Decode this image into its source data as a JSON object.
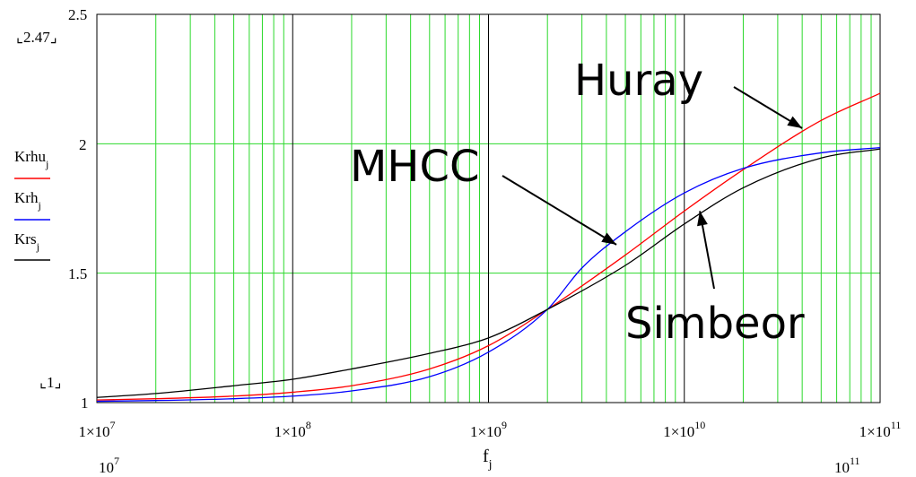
{
  "chart_data": {
    "type": "line",
    "x_scale": "log",
    "xlim": [
      10000000,
      100000000000
    ],
    "ylim": [
      1,
      2.5
    ],
    "grid": true,
    "x_tick_labels": [
      {
        "base": "1×10",
        "exp": "7"
      },
      {
        "base": "1×10",
        "exp": "8"
      },
      {
        "base": "1×10",
        "exp": "9"
      },
      {
        "base": "1×10",
        "exp": "10"
      },
      {
        "base": "1×10",
        "exp": "11"
      }
    ],
    "x_range_labels": {
      "left": {
        "base": "10",
        "exp": "7"
      },
      "right": {
        "base": "10",
        "exp": "11"
      }
    },
    "y_tick_labels": [
      "1",
      "1.5",
      "2",
      "2.5"
    ],
    "y_marker_labels": {
      "top": "2.47",
      "bottom": "1"
    },
    "xlabel": {
      "base": "f",
      "sub": "j"
    },
    "series": [
      {
        "name": "Krhu",
        "sub": "j",
        "color": "#ff0000",
        "x": [
          10000000,
          20000000,
          50000000,
          100000000,
          200000000,
          500000000,
          1000000000,
          2000000000,
          5000000000,
          10000000000,
          20000000000,
          50000000000,
          100000000000
        ],
        "y": [
          1.01,
          1.015,
          1.025,
          1.04,
          1.065,
          1.13,
          1.22,
          1.36,
          1.57,
          1.74,
          1.9,
          2.09,
          2.195
        ]
      },
      {
        "name": "Krh",
        "sub": "j",
        "color": "#0000ff",
        "x": [
          10000000,
          20000000,
          50000000,
          100000000,
          200000000,
          500000000,
          1000000000,
          2000000000,
          3000000000,
          5000000000,
          10000000000,
          20000000000,
          50000000000,
          100000000000
        ],
        "y": [
          1.005,
          1.008,
          1.015,
          1.025,
          1.045,
          1.1,
          1.195,
          1.36,
          1.52,
          1.66,
          1.81,
          1.905,
          1.965,
          1.985
        ]
      },
      {
        "name": "Krs",
        "sub": "j",
        "color": "#000000",
        "x": [
          10000000,
          20000000,
          50000000,
          100000000,
          200000000,
          500000000,
          1000000000,
          2000000000,
          5000000000,
          10000000000,
          20000000000,
          50000000000,
          100000000000
        ],
        "y": [
          1.02,
          1.035,
          1.065,
          1.09,
          1.13,
          1.19,
          1.25,
          1.36,
          1.53,
          1.69,
          1.83,
          1.945,
          1.98
        ]
      }
    ],
    "annotations": [
      {
        "text": "Huray",
        "points_to": [
          40000000000,
          2.06
        ]
      },
      {
        "text": "MHCC",
        "points_to": [
          4500000000,
          1.61
        ]
      },
      {
        "text": "Simbeor",
        "points_to": [
          12000000000,
          1.74
        ]
      }
    ]
  }
}
